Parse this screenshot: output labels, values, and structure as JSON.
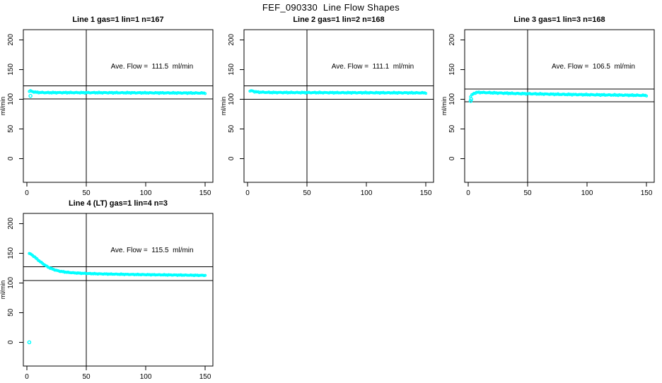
{
  "page_title": "FEF_090330  Line Flow Shapes",
  "colors": {
    "marker": "#00FFFF",
    "axis": "#000000",
    "background": "#FFFFFF"
  },
  "axes": {
    "x_ticks": [
      0,
      50,
      100,
      150
    ],
    "y_ticks": [
      0,
      50,
      100,
      150,
      200
    ],
    "x_range": [
      -3,
      156.5
    ],
    "y_range": [
      -40,
      217
    ],
    "y_axis_label": "ml/min",
    "vline_x": 50
  },
  "chart_data": [
    {
      "type": "scatter",
      "title": "Line 1 gas=1 lin=1 n=167",
      "ave_flow_label": "Ave. Flow =  111.5  ml/min",
      "ave_flow_ml_min": 111.5,
      "n_label": 167,
      "hlines": [
        122.7,
        100.4
      ],
      "trend": [
        [
          2,
          113
        ],
        [
          3,
          114
        ],
        [
          5,
          112.5
        ],
        [
          8,
          111.5
        ],
        [
          15,
          111
        ],
        [
          40,
          111
        ],
        [
          80,
          110.8
        ],
        [
          150,
          110.3
        ]
      ],
      "noise": 0.9,
      "outliers": [
        [
          3,
          105.5
        ]
      ],
      "marker_count": 150,
      "xlabel": "",
      "ylabel": "ml/min"
    },
    {
      "type": "scatter",
      "title": "Line 2 gas=1 lin=2 n=168",
      "ave_flow_label": "Ave. Flow =  111.1  ml/min",
      "ave_flow_ml_min": 111.1,
      "n_label": 168,
      "hlines": [
        122.2,
        100.0
      ],
      "trend": [
        [
          2,
          113.5
        ],
        [
          4,
          114
        ],
        [
          6,
          112.5
        ],
        [
          10,
          111.8
        ],
        [
          20,
          111.2
        ],
        [
          60,
          111
        ],
        [
          150,
          110.6
        ]
      ],
      "noise": 0.9,
      "outliers": [],
      "marker_count": 150,
      "xlabel": "",
      "ylabel": "ml/min"
    },
    {
      "type": "scatter",
      "title": "Line 3 gas=1 lin=3 n=168",
      "ave_flow_label": "Ave. Flow =  106.5  ml/min",
      "ave_flow_ml_min": 106.5,
      "n_label": 168,
      "hlines": [
        117.2,
        95.9
      ],
      "trend": [
        [
          2,
          104
        ],
        [
          3,
          107
        ],
        [
          5,
          110
        ],
        [
          8,
          111.5
        ],
        [
          15,
          111
        ],
        [
          40,
          109.5
        ],
        [
          80,
          108
        ],
        [
          120,
          107
        ],
        [
          150,
          106.3
        ]
      ],
      "noise": 1.0,
      "outliers": [
        [
          2,
          97
        ],
        [
          2.5,
          100
        ]
      ],
      "marker_count": 150,
      "xlabel": "",
      "ylabel": "ml/min"
    },
    {
      "type": "scatter",
      "title": "Line 4 (LT) gas=1 lin=4 n=3",
      "ave_flow_label": "Ave. Flow =  115.5  ml/min",
      "ave_flow_ml_min": 115.5,
      "n_label": 3,
      "hlines": [
        127.1,
        104.0
      ],
      "trend": [
        [
          2,
          149.5
        ],
        [
          4,
          147.5
        ],
        [
          6,
          144.5
        ],
        [
          8,
          141
        ],
        [
          11,
          136
        ],
        [
          14,
          131.5
        ],
        [
          17,
          127.5
        ],
        [
          20,
          124.5
        ],
        [
          24,
          121.5
        ],
        [
          28,
          119.5
        ],
        [
          33,
          118
        ],
        [
          40,
          116.8
        ],
        [
          50,
          115.8
        ],
        [
          65,
          115
        ],
        [
          85,
          114.3
        ],
        [
          110,
          113.6
        ],
        [
          150,
          112.6
        ]
      ],
      "noise": 0.7,
      "outliers": [
        [
          2,
          0
        ]
      ],
      "marker_count": 160,
      "xlabel": "",
      "ylabel": "ml/min"
    }
  ]
}
